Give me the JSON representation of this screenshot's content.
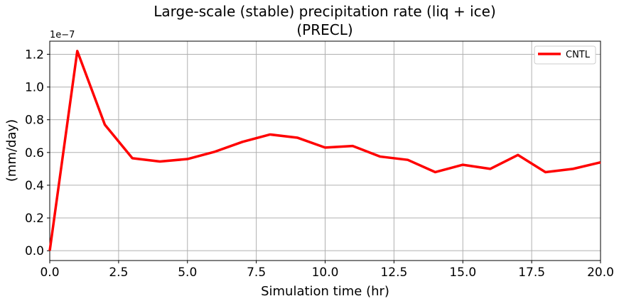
{
  "chart_data": {
    "type": "line",
    "title_line1": "Large-scale (stable) precipitation rate (liq + ice)",
    "title_line2": "(PRECL)",
    "xlabel": "Simulation time (hr)",
    "ylabel": "(mm/day)",
    "y_offset_label": "1e−7",
    "xlim": [
      0,
      20
    ],
    "ylim": [
      -0.06,
      1.28
    ],
    "x_ticks": [
      0,
      2.5,
      5,
      7.5,
      10,
      12.5,
      15,
      17.5,
      20
    ],
    "x_tick_labels": [
      "0.0",
      "2.5",
      "5.0",
      "7.5",
      "10.0",
      "12.5",
      "15.0",
      "17.5",
      "20.0"
    ],
    "y_ticks": [
      0,
      0.2,
      0.4,
      0.6,
      0.8,
      1.0,
      1.2
    ],
    "y_tick_labels": [
      "0.0",
      "0.2",
      "0.4",
      "0.6",
      "0.8",
      "1.0",
      "1.2"
    ],
    "grid": true,
    "legend_position": "top-right",
    "series": [
      {
        "name": "CNTL",
        "color": "#ff0000",
        "x": [
          0,
          1,
          2,
          3,
          4,
          5,
          6,
          7,
          8,
          9,
          10,
          11,
          12,
          13,
          14,
          15,
          16,
          17,
          18,
          19,
          20
        ],
        "values": [
          0.0,
          1.22,
          0.77,
          0.565,
          0.545,
          0.56,
          0.605,
          0.665,
          0.71,
          0.69,
          0.63,
          0.64,
          0.575,
          0.555,
          0.48,
          0.525,
          0.5,
          0.585,
          0.48,
          0.5,
          0.54
        ]
      }
    ]
  }
}
